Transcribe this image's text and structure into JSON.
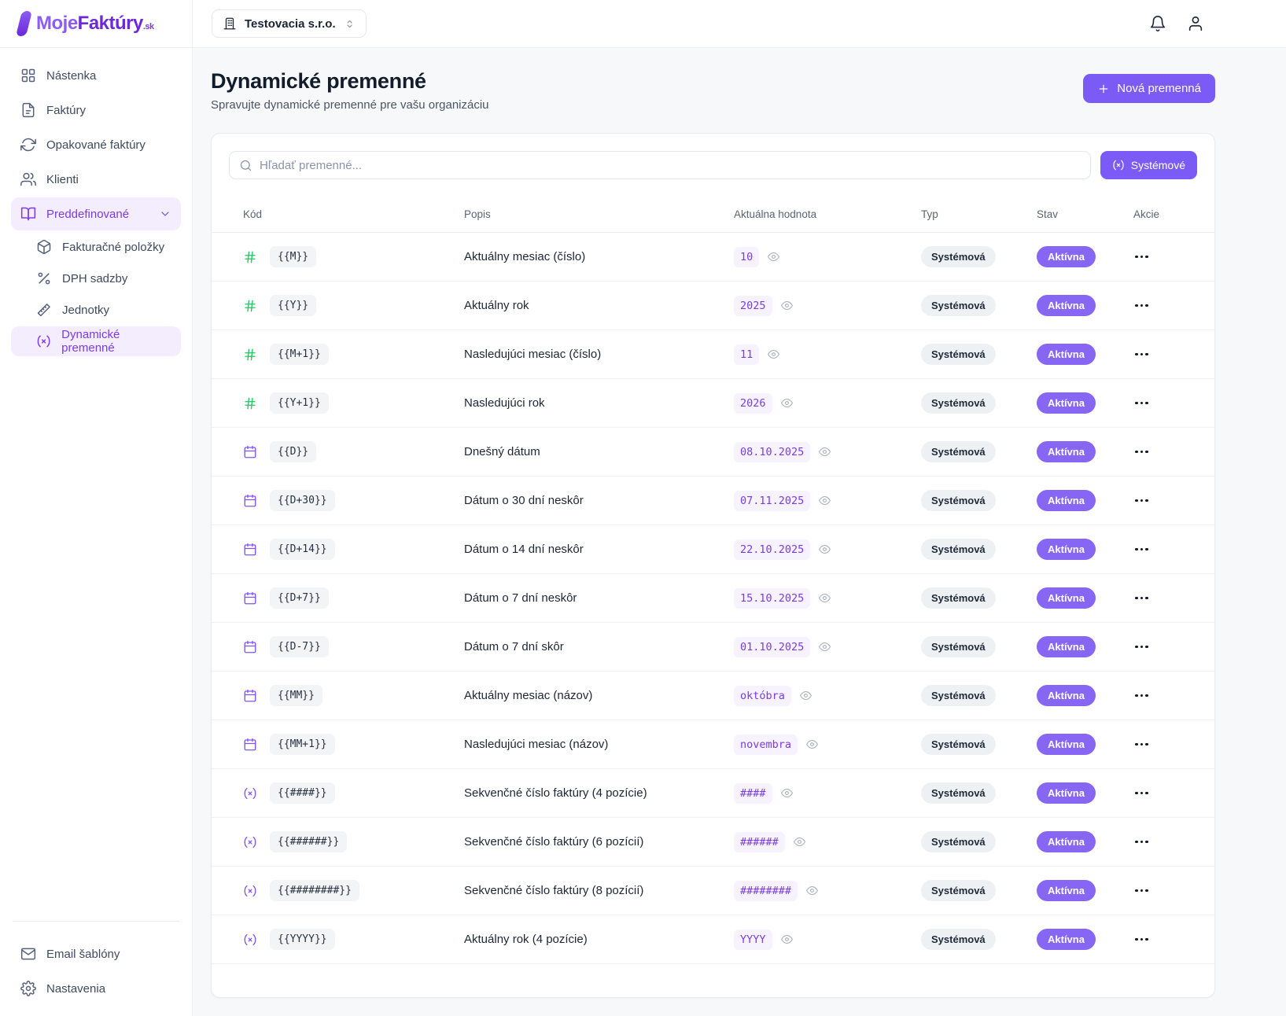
{
  "brand": {
    "name_part1": "Moje",
    "name_part2": "Faktúry",
    "name_suffix": ".sk"
  },
  "topbar": {
    "company": "Testovacia s.r.o."
  },
  "sidebar": {
    "items": [
      {
        "label": "Nástenka",
        "icon": "dashboard"
      },
      {
        "label": "Faktúry",
        "icon": "invoice"
      },
      {
        "label": "Opakované faktúry",
        "icon": "repeat"
      },
      {
        "label": "Klienti",
        "icon": "clients"
      },
      {
        "label": "Preddefinované",
        "icon": "book",
        "active": true,
        "expanded": true
      }
    ],
    "subitems": [
      {
        "label": "Fakturačné položky",
        "icon": "package"
      },
      {
        "label": "DPH sadzby",
        "icon": "percent"
      },
      {
        "label": "Jednotky",
        "icon": "ruler"
      },
      {
        "label": "Dynamické premenné",
        "icon": "var",
        "active": true
      }
    ],
    "footer_items": [
      {
        "label": "Email šablóny",
        "icon": "mail"
      },
      {
        "label": "Nastavenia",
        "icon": "gear"
      }
    ]
  },
  "page": {
    "title": "Dynamické premenné",
    "subtitle": "Spravujte dynamické premenné pre vašu organizáciu",
    "new_button": "Nová premenná",
    "search_placeholder": "Hľadať premenné...",
    "filter_button": "Systémové"
  },
  "table": {
    "headers": [
      "Kód",
      "Popis",
      "Aktuálna hodnota",
      "Typ",
      "Stav",
      "Akcie"
    ],
    "rows": [
      {
        "icon": "hash",
        "code": "{{M}}",
        "desc": "Aktuálny mesiac (číslo)",
        "value": "10",
        "type": "Systémová",
        "status": "Aktívna"
      },
      {
        "icon": "hash",
        "code": "{{Y}}",
        "desc": "Aktuálny rok",
        "value": "2025",
        "type": "Systémová",
        "status": "Aktívna"
      },
      {
        "icon": "hash",
        "code": "{{M+1}}",
        "desc": "Nasledujúci mesiac (číslo)",
        "value": "11",
        "type": "Systémová",
        "status": "Aktívna"
      },
      {
        "icon": "hash",
        "code": "{{Y+1}}",
        "desc": "Nasledujúci rok",
        "value": "2026",
        "type": "Systémová",
        "status": "Aktívna"
      },
      {
        "icon": "calendar",
        "code": "{{D}}",
        "desc": "Dnešný dátum",
        "value": "08.10.2025",
        "type": "Systémová",
        "status": "Aktívna"
      },
      {
        "icon": "calendar",
        "code": "{{D+30}}",
        "desc": "Dátum o 30 dní neskôr",
        "value": "07.11.2025",
        "type": "Systémová",
        "status": "Aktívna"
      },
      {
        "icon": "calendar",
        "code": "{{D+14}}",
        "desc": "Dátum o 14 dní neskôr",
        "value": "22.10.2025",
        "type": "Systémová",
        "status": "Aktívna"
      },
      {
        "icon": "calendar",
        "code": "{{D+7}}",
        "desc": "Dátum o 7 dní neskôr",
        "value": "15.10.2025",
        "type": "Systémová",
        "status": "Aktívna"
      },
      {
        "icon": "calendar",
        "code": "{{D-7}}",
        "desc": "Dátum o 7 dní skôr",
        "value": "01.10.2025",
        "type": "Systémová",
        "status": "Aktívna"
      },
      {
        "icon": "calendar",
        "code": "{{MM}}",
        "desc": "Aktuálny mesiac (názov)",
        "value": "októbra",
        "type": "Systémová",
        "status": "Aktívna"
      },
      {
        "icon": "calendar",
        "code": "{{MM+1}}",
        "desc": "Nasledujúci mesiac (názov)",
        "value": "novembra",
        "type": "Systémová",
        "status": "Aktívna"
      },
      {
        "icon": "var",
        "code": "{{####}}",
        "desc": "Sekvenčné číslo faktúry (4 pozície)",
        "value": "####",
        "type": "Systémová",
        "status": "Aktívna"
      },
      {
        "icon": "var",
        "code": "{{######}}",
        "desc": "Sekvenčné číslo faktúry (6 pozícií)",
        "value": "######",
        "type": "Systémová",
        "status": "Aktívna"
      },
      {
        "icon": "var",
        "code": "{{########}}",
        "desc": "Sekvenčné číslo faktúry (8 pozícií)",
        "value": "########",
        "type": "Systémová",
        "status": "Aktívna"
      },
      {
        "icon": "var",
        "code": "{{YYYY}}",
        "desc": "Aktuálny rok (4 pozície)",
        "value": "YYYY",
        "type": "Systémová",
        "status": "Aktívna"
      }
    ]
  },
  "colors": {
    "accent": "#7b5bf5",
    "accent_badge": "#8766f3",
    "accent_light_bg": "#f3edfe",
    "value_bg": "#f6f3ff",
    "value_text": "#7c3aed",
    "hash_green": "#22c55e",
    "code_badge_bg": "#f2f4f6",
    "type_badge_bg": "#eef1f4"
  }
}
